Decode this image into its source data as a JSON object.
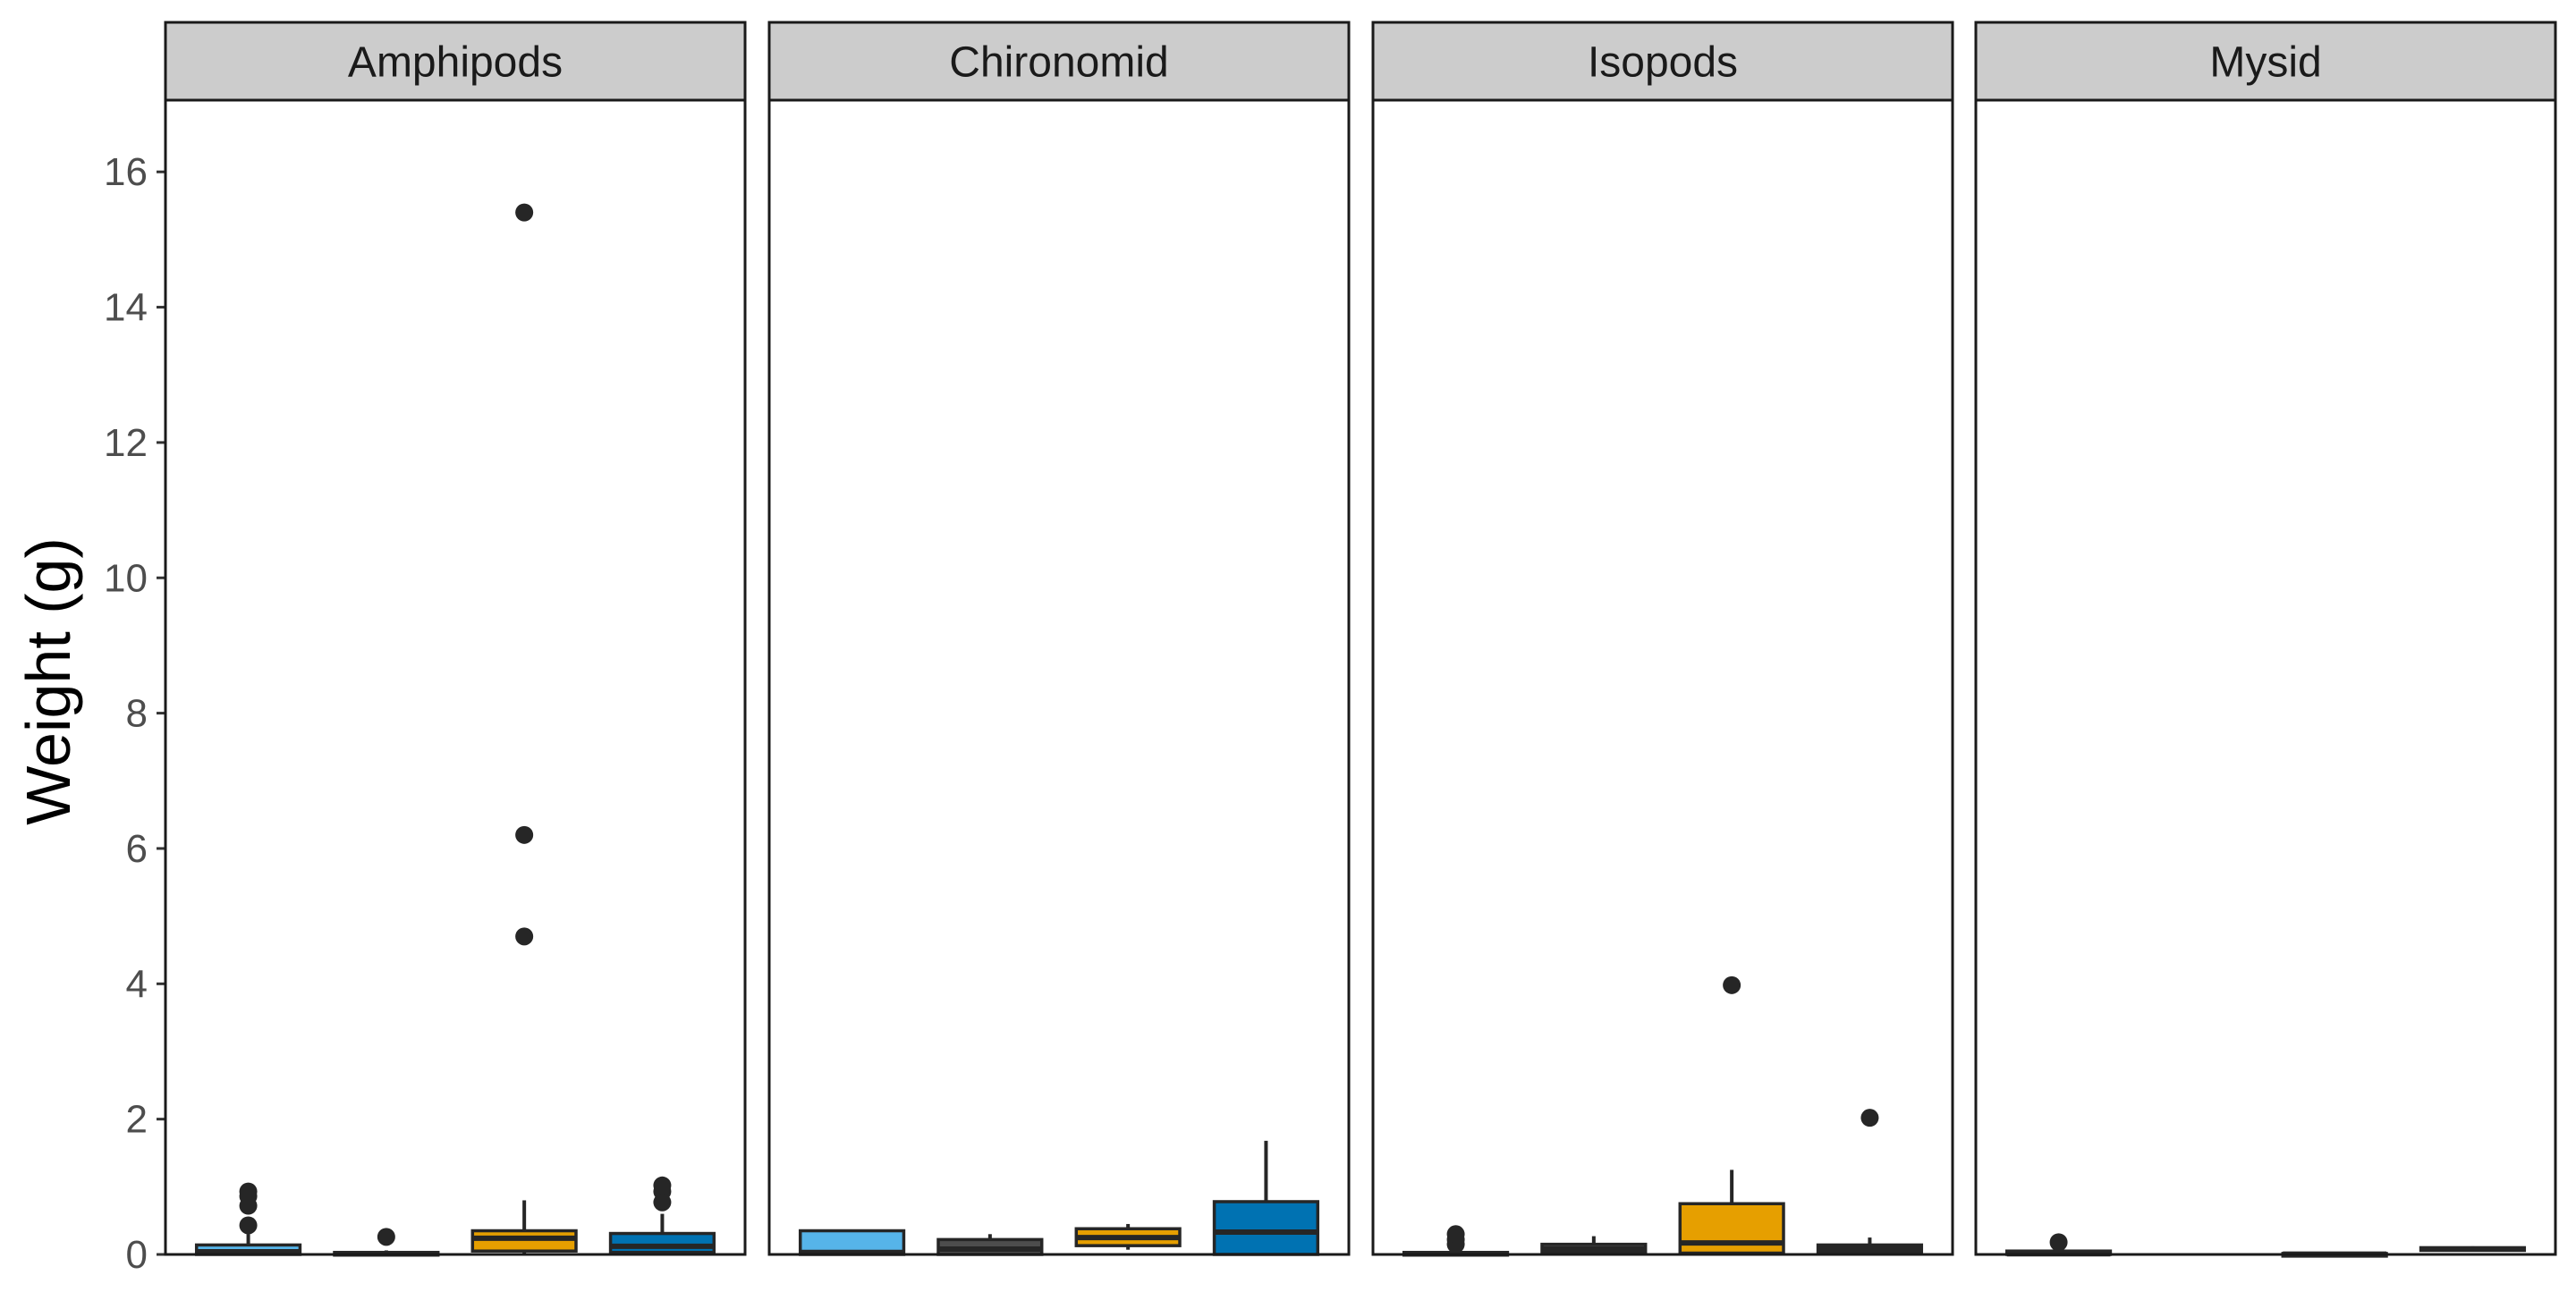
{
  "chart_data": {
    "type": "boxplot",
    "ylabel": "Weight (g)",
    "xlabel": "",
    "ylim": [
      0,
      16
    ],
    "yticks": [
      0,
      2,
      4,
      6,
      8,
      10,
      12,
      14,
      16
    ],
    "grid": false,
    "legend": "none",
    "group_colors": [
      "#56B4E9",
      "#4D4D4D",
      "#E69F00",
      "#0072B2"
    ],
    "outline_color": "#262626",
    "panels": [
      {
        "name": "Amphipods",
        "boxes": [
          {
            "group": 1,
            "min": 0.0,
            "q1": 0.0,
            "median": 0.04,
            "q3": 0.14,
            "max": 0.3,
            "outliers": [
              0.43,
              0.72,
              0.86,
              0.93
            ]
          },
          {
            "group": 2,
            "min": 0.0,
            "q1": 0.0,
            "median": 0.01,
            "q3": 0.03,
            "max": 0.06,
            "outliers": [
              0.26
            ]
          },
          {
            "group": 3,
            "min": 0.0,
            "q1": 0.05,
            "median": 0.24,
            "q3": 0.35,
            "max": 0.8,
            "outliers": [
              4.7,
              6.2,
              15.4
            ]
          },
          {
            "group": 4,
            "min": 0.0,
            "q1": 0.03,
            "median": 0.12,
            "q3": 0.31,
            "max": 0.6,
            "outliers": [
              0.77,
              0.93,
              1.02
            ]
          }
        ]
      },
      {
        "name": "Chironomid",
        "boxes": [
          {
            "group": 1,
            "min": 0.0,
            "q1": 0.0,
            "median": 0.03,
            "q3": 0.35,
            "max": 0.35,
            "outliers": []
          },
          {
            "group": 2,
            "min": 0.0,
            "q1": 0.0,
            "median": 0.08,
            "q3": 0.22,
            "max": 0.3,
            "outliers": []
          },
          {
            "group": 3,
            "min": 0.07,
            "q1": 0.13,
            "median": 0.25,
            "q3": 0.38,
            "max": 0.45,
            "outliers": []
          },
          {
            "group": 4,
            "min": 0.0,
            "q1": 0.0,
            "median": 0.33,
            "q3": 0.78,
            "max": 1.68,
            "outliers": []
          }
        ]
      },
      {
        "name": "Isopods",
        "boxes": [
          {
            "group": 1,
            "min": 0.0,
            "q1": 0.0,
            "median": 0.01,
            "q3": 0.03,
            "max": 0.08,
            "outliers": [
              0.15,
              0.22,
              0.3
            ]
          },
          {
            "group": 2,
            "min": 0.0,
            "q1": 0.02,
            "median": 0.08,
            "q3": 0.15,
            "max": 0.27,
            "outliers": []
          },
          {
            "group": 3,
            "min": 0.0,
            "q1": 0.02,
            "median": 0.17,
            "q3": 0.75,
            "max": 1.25,
            "outliers": [
              3.98
            ]
          },
          {
            "group": 4,
            "min": 0.0,
            "q1": 0.02,
            "median": 0.08,
            "q3": 0.14,
            "max": 0.25,
            "outliers": [
              2.02
            ]
          }
        ]
      },
      {
        "name": "Mysid",
        "boxes": [
          {
            "group": 1,
            "min": 0.0,
            "q1": 0.0,
            "median": 0.01,
            "q3": 0.05,
            "max": 0.08,
            "outliers": [
              0.18
            ]
          },
          {
            "group": 3,
            "min": 0.0,
            "q1": 0.0,
            "median": 0.005,
            "q3": 0.015,
            "max": 0.02,
            "outliers": []
          },
          {
            "group": 4,
            "min": 0.05,
            "q1": 0.06,
            "median": 0.08,
            "q3": 0.1,
            "max": 0.12,
            "outliers": []
          }
        ]
      }
    ]
  }
}
